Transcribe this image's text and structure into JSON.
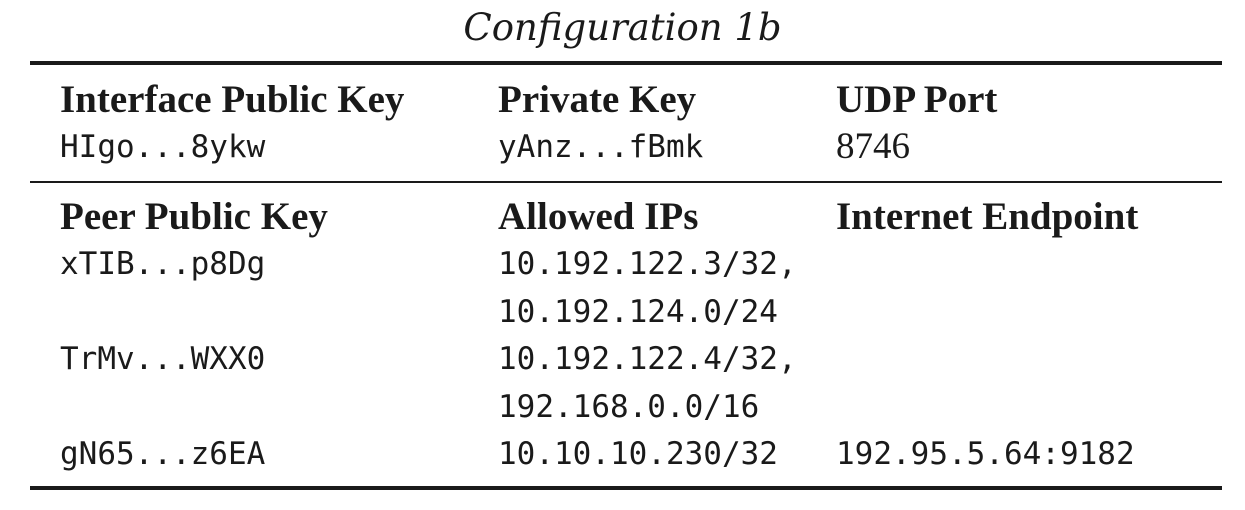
{
  "caption": "Configuration 1b",
  "interface": {
    "headers": [
      "Interface Public Key",
      "Private Key",
      "UDP Port"
    ],
    "public_key": "HIgo...8ykw",
    "private_key": "yAnz...fBmk",
    "udp_port": "8746"
  },
  "peers": {
    "headers": [
      "Peer Public Key",
      "Allowed IPs",
      "Internet Endpoint"
    ],
    "rows": [
      {
        "public_key": "xTIB...p8Dg",
        "allowed_ips": [
          "10.192.122.3/32,",
          "10.192.124.0/24"
        ],
        "endpoint": ""
      },
      {
        "public_key": "TrMv...WXX0",
        "allowed_ips": [
          "10.192.122.4/32,",
          "192.168.0.0/16"
        ],
        "endpoint": ""
      },
      {
        "public_key": "gN65...z6EA",
        "allowed_ips": [
          "10.10.10.230/32"
        ],
        "endpoint": "192.95.5.64:9182"
      }
    ]
  }
}
